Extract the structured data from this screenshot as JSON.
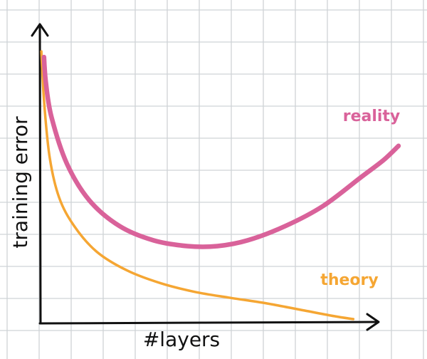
{
  "chart_data": {
    "type": "line",
    "title": "",
    "xlabel": "#layers",
    "ylabel": "training error",
    "grid": true,
    "xlim": [
      0,
      1
    ],
    "ylim": [
      0,
      1
    ],
    "series": [
      {
        "name": "reality",
        "color": "#d9629a",
        "x": [
          0.06,
          0.065,
          0.08,
          0.12,
          0.18,
          0.26,
          0.35,
          0.44,
          0.52,
          0.6,
          0.7,
          0.8,
          0.9,
          0.96,
          1.0
        ],
        "y": [
          0.93,
          0.84,
          0.72,
          0.56,
          0.43,
          0.34,
          0.29,
          0.27,
          0.27,
          0.29,
          0.34,
          0.41,
          0.51,
          0.57,
          0.62
        ]
      },
      {
        "name": "theory",
        "color": "#f5a633",
        "x": [
          0.053,
          0.06,
          0.075,
          0.1,
          0.14,
          0.2,
          0.28,
          0.37,
          0.46,
          0.55,
          0.65,
          0.75,
          0.83,
          0.88
        ],
        "y": [
          0.95,
          0.78,
          0.58,
          0.44,
          0.34,
          0.25,
          0.185,
          0.14,
          0.11,
          0.09,
          0.07,
          0.045,
          0.025,
          0.015
        ]
      }
    ]
  }
}
